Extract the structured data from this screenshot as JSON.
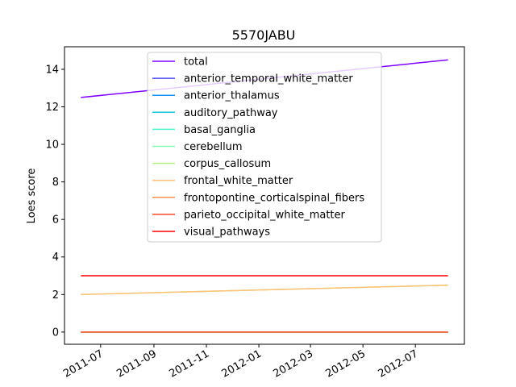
{
  "chart_data": {
    "type": "line",
    "title": "5570JABU",
    "xlabel": "",
    "ylabel": "Loes score",
    "x": [
      "2011-06-08",
      "2012-08-08"
    ],
    "xlim": [
      "2011-05-20",
      "2012-08-27"
    ],
    "ylim": [
      -0.65,
      15.2
    ],
    "yticks": [
      0,
      2,
      4,
      6,
      8,
      10,
      12,
      14
    ],
    "xticks": [
      "2011-07",
      "2011-09",
      "2011-11",
      "2012-01",
      "2012-03",
      "2012-05",
      "2012-07"
    ],
    "legend_position": "upper-center",
    "grid": false,
    "series": [
      {
        "name": "total",
        "color": "#8000ff",
        "values": [
          12.5,
          14.5
        ]
      },
      {
        "name": "anterior_temporal_white_matter",
        "color": "#4b4bfc",
        "values": [
          0,
          0
        ]
      },
      {
        "name": "anterior_thalamus",
        "color": "#1a8eee",
        "values": [
          0,
          0
        ]
      },
      {
        "name": "auditory_pathway",
        "color": "#16c6dc",
        "values": [
          0,
          0
        ]
      },
      {
        "name": "basal_ganglia",
        "color": "#4cf2ce",
        "values": [
          0,
          0
        ]
      },
      {
        "name": "cerebellum",
        "color": "#80ffb4",
        "values": [
          0,
          0
        ]
      },
      {
        "name": "corpus_callosum",
        "color": "#b4f28e",
        "values": [
          2.0,
          2.5
        ]
      },
      {
        "name": "frontal_white_matter",
        "color": "#ffc078",
        "values": [
          2.0,
          2.5
        ]
      },
      {
        "name": "frontopontine_corticalspinal_fibers",
        "color": "#ff9452",
        "values": [
          0,
          0
        ]
      },
      {
        "name": "parieto_occipital_white_matter",
        "color": "#ff4b26",
        "values": [
          0,
          0
        ]
      },
      {
        "name": "visual_pathways",
        "color": "#ff0000",
        "values": [
          3,
          3
        ]
      }
    ]
  }
}
